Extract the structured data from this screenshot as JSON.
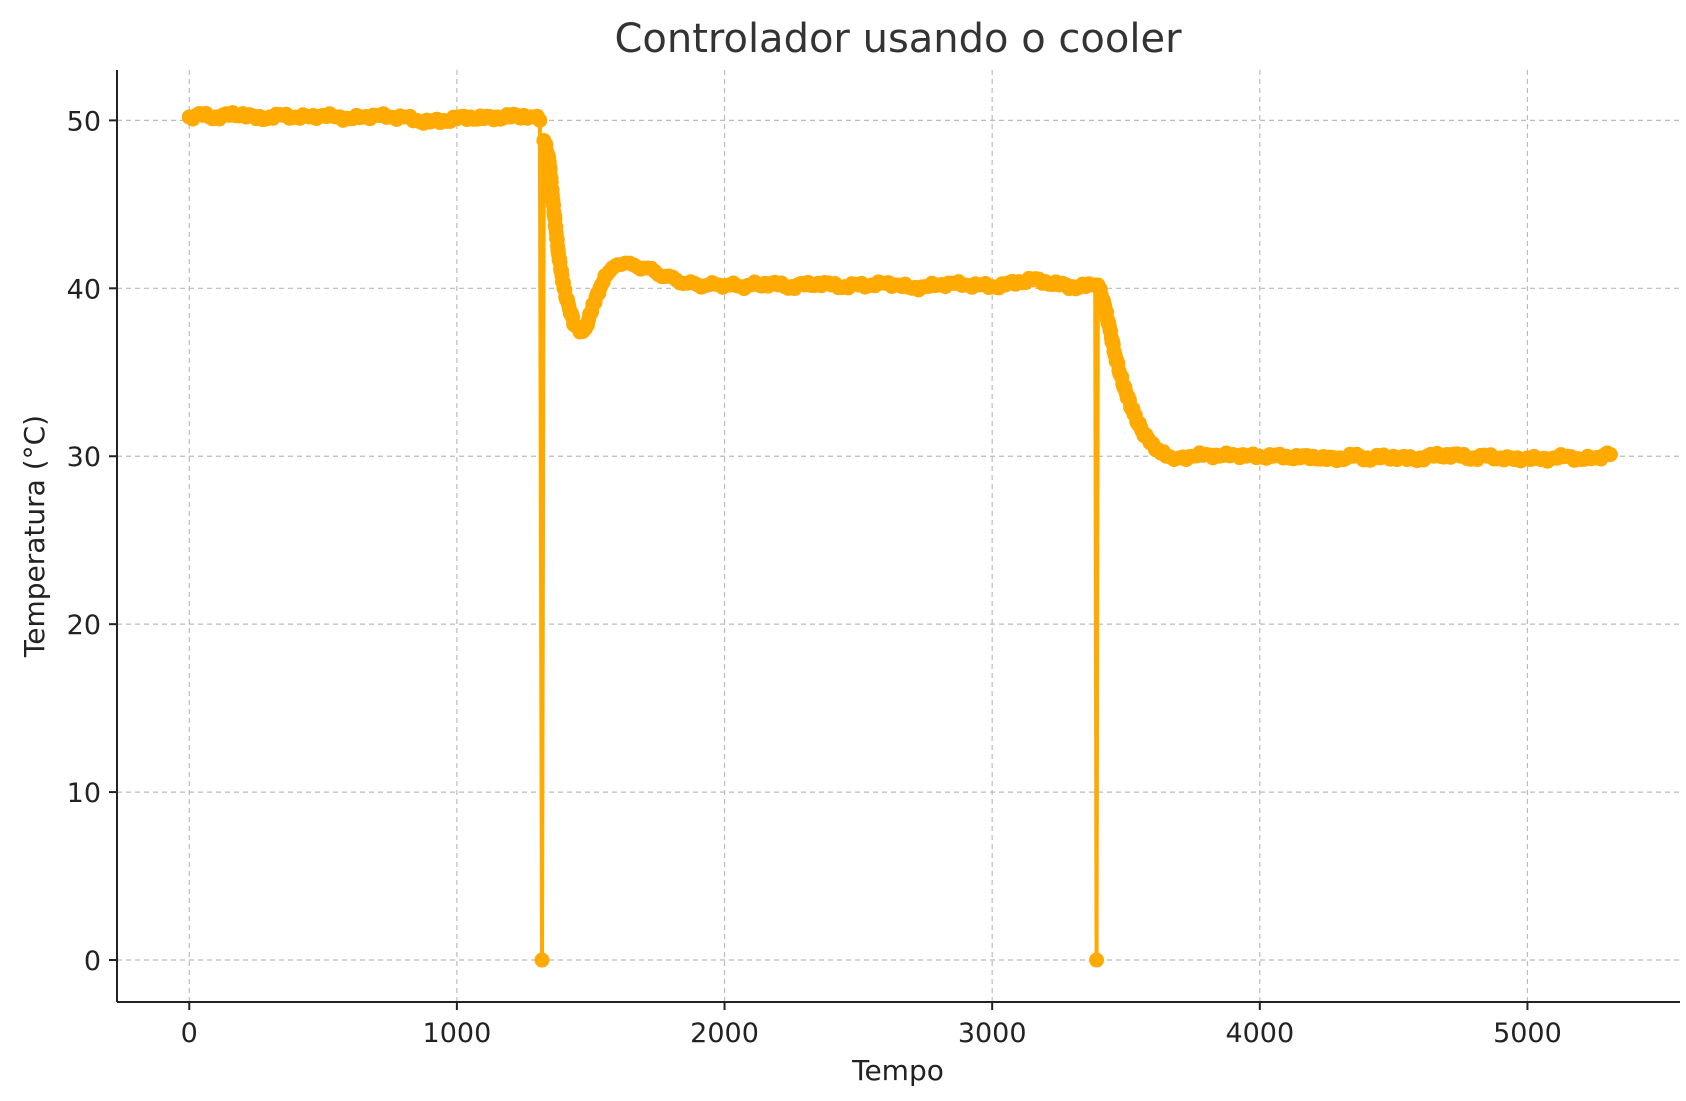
{
  "chart_data": {
    "type": "line",
    "title": "Controlador usando o cooler",
    "xlabel": "Tempo",
    "ylabel": "Temperatura (°C)",
    "xlim": [
      -270,
      5570
    ],
    "ylim": [
      -2.5,
      53
    ],
    "xticks": [
      0,
      1000,
      2000,
      3000,
      4000,
      5000
    ],
    "yticks": [
      0,
      10,
      20,
      30,
      40,
      50
    ],
    "grid": true,
    "series_color": "#FFAA00",
    "markers": true,
    "series": [
      {
        "x": [
          0,
          50,
          100,
          150,
          200,
          250,
          300,
          350,
          400,
          450,
          500,
          550,
          600,
          650,
          700,
          750,
          800,
          850,
          900,
          950,
          1000,
          1050,
          1100,
          1150,
          1200,
          1250,
          1290,
          1310,
          1318,
          1325,
          1330,
          1345,
          1360,
          1380,
          1400,
          1420,
          1440,
          1460,
          1480,
          1500,
          1520,
          1540,
          1560,
          1580,
          1600,
          1630,
          1660,
          1700,
          1740,
          1780,
          1820,
          1860,
          1900,
          1940,
          1980,
          2020,
          2060,
          2100,
          2150,
          2200,
          2250,
          2300,
          2350,
          2400,
          2450,
          2500,
          2550,
          2600,
          2650,
          2700,
          2750,
          2800,
          2850,
          2900,
          2950,
          3000,
          3050,
          3100,
          3150,
          3200,
          3250,
          3300,
          3350,
          3385,
          3390,
          3395,
          3400,
          3420,
          3440,
          3460,
          3480,
          3500,
          3530,
          3560,
          3590,
          3620,
          3650,
          3680,
          3700,
          3750,
          3800,
          3850,
          3900,
          3950,
          4000,
          4050,
          4100,
          4150,
          4200,
          4250,
          4300,
          4350,
          4400,
          4450,
          4500,
          4550,
          4600,
          4650,
          4700,
          4750,
          4800,
          4850,
          4900,
          4950,
          5000,
          5050,
          5100,
          5150,
          5200,
          5250,
          5310
        ],
        "y": [
          50.2,
          50.3,
          50.2,
          50.3,
          50.4,
          50.1,
          50.2,
          50.3,
          50.2,
          50.2,
          50.3,
          50.2,
          50.1,
          50.2,
          50.3,
          50.2,
          50.2,
          50.0,
          49.9,
          50.0,
          50.1,
          50.2,
          50.1,
          50.2,
          50.2,
          50.3,
          50.2,
          50.0,
          0,
          48.8,
          48.6,
          47.5,
          45.0,
          42.0,
          40.0,
          38.8,
          37.8,
          37.4,
          37.6,
          38.5,
          39.5,
          40.2,
          40.8,
          41.2,
          41.4,
          41.5,
          41.4,
          41.2,
          41.0,
          40.7,
          40.5,
          40.3,
          40.2,
          40.2,
          40.2,
          40.2,
          40.1,
          40.2,
          40.3,
          40.2,
          40.1,
          40.2,
          40.3,
          40.2,
          40.1,
          40.2,
          40.2,
          40.3,
          40.2,
          40.0,
          40.1,
          40.2,
          40.3,
          40.2,
          40.2,
          40.1,
          40.2,
          40.4,
          40.5,
          40.4,
          40.2,
          40.1,
          40.1,
          40.2,
          0,
          40.2,
          40.0,
          39.0,
          37.5,
          36.0,
          34.8,
          33.8,
          32.5,
          31.5,
          30.8,
          30.4,
          30.0,
          29.8,
          29.9,
          30.0,
          30.1,
          30.0,
          30.1,
          30.0,
          30.0,
          30.0,
          30.0,
          29.9,
          30.0,
          29.8,
          29.9,
          30.0,
          29.9,
          29.9,
          30.0,
          29.8,
          29.9,
          30.0,
          30.1,
          30.0,
          29.9,
          30.0,
          29.9,
          29.8,
          29.9,
          29.8,
          29.9,
          30.0,
          29.8,
          29.9,
          30.1
        ]
      }
    ]
  }
}
